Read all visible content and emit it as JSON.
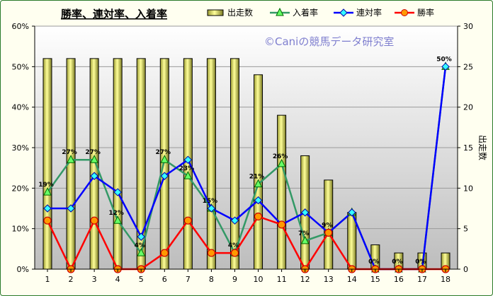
{
  "chart_data": {
    "type": "bar+line",
    "title": "勝率、連対率、入着率",
    "watermark": "©Caniの競馬データ研究室",
    "categories": [
      "1",
      "2",
      "3",
      "4",
      "5",
      "6",
      "7",
      "8",
      "9",
      "10",
      "11",
      "12",
      "13",
      "14",
      "15",
      "16",
      "17",
      "18"
    ],
    "left_axis": {
      "ylim": [
        0,
        0.6
      ],
      "ticks": [
        "0%",
        "10%",
        "20%",
        "30%",
        "40%",
        "50%",
        "60%"
      ]
    },
    "right_axis": {
      "label": "出走数",
      "ylim": [
        0,
        30
      ],
      "ticks": [
        "0",
        "5",
        "10",
        "15",
        "20",
        "25",
        "30"
      ]
    },
    "bars": {
      "name": "出走数",
      "color": "#ffff99",
      "values": [
        26,
        26,
        26,
        26,
        26,
        26,
        26,
        26,
        26,
        24,
        19,
        14,
        11,
        7,
        3,
        2,
        2,
        2
      ]
    },
    "series": [
      {
        "name": "入着率",
        "color": "#339966",
        "marker": "triangle",
        "values": [
          0.19,
          0.27,
          0.27,
          0.12,
          0.04,
          0.27,
          0.23,
          0.15,
          0.04,
          0.21,
          0.26,
          0.07,
          0.09,
          0.14,
          0,
          0,
          0,
          0.5
        ],
        "labels": [
          "19%",
          "27%",
          "27%",
          "12%",
          "4%",
          "27%",
          "23%",
          "15%",
          "4%",
          "21%",
          "26%",
          "7%",
          "9%",
          "",
          "0%",
          "0%",
          "0%",
          "50%"
        ]
      },
      {
        "name": "連対率",
        "color": "#0000ff",
        "marker": "diamond",
        "values": [
          0.15,
          0.15,
          0.23,
          0.19,
          0.08,
          0.23,
          0.27,
          0.15,
          0.12,
          0.17,
          0.11,
          0.14,
          0.09,
          0.14,
          0,
          0,
          0,
          0.5
        ]
      },
      {
        "name": "勝率",
        "color": "#ff0000",
        "marker": "circle",
        "values": [
          0.12,
          0,
          0.12,
          0,
          0,
          0.04,
          0.12,
          0.04,
          0.04,
          0.13,
          0.11,
          0,
          0.09,
          0,
          0,
          0,
          0,
          0
        ]
      }
    ],
    "legend_position": "top",
    "grid": true
  }
}
